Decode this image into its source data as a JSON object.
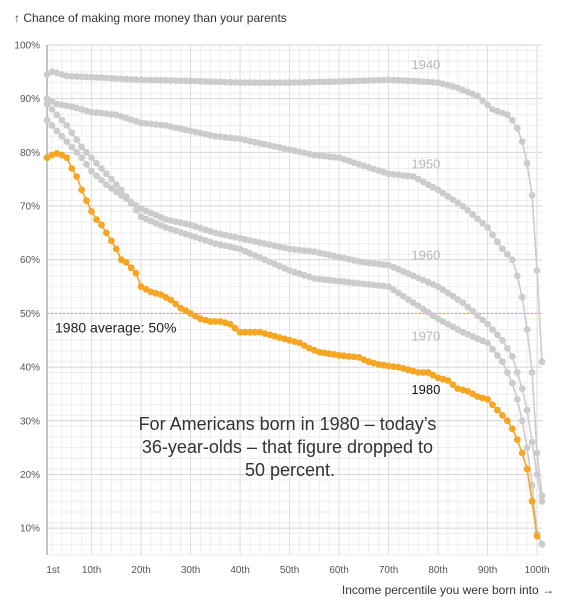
{
  "chart_data": {
    "type": "line",
    "ylabel": "↑ Chance of making more money than your parents",
    "xlabel": "Income percentile you were born into →",
    "x_range": [
      1,
      100
    ],
    "ylim": [
      5,
      100
    ],
    "y_ticks": [
      10,
      20,
      30,
      40,
      50,
      60,
      70,
      80,
      90,
      100
    ],
    "y_tick_labels": [
      "10%",
      "20%",
      "30%",
      "40%",
      "50%",
      "60%",
      "70%",
      "80%",
      "90%",
      "100%"
    ],
    "x_ticks": [
      1,
      10,
      20,
      30,
      40,
      50,
      60,
      70,
      80,
      90,
      100
    ],
    "x_tick_labels": [
      "1st",
      "10th",
      "20th",
      "30th",
      "40th",
      "50th",
      "60th",
      "70th",
      "80th",
      "90th",
      "100th"
    ],
    "grid": true,
    "reference_line": {
      "y": 50,
      "label": "1980 average: 50%"
    },
    "annotation": [
      "For Americans born in 1980 – today’s",
      "36-year-olds – that figure dropped to",
      "50 percent."
    ],
    "series": [
      {
        "name": "1940",
        "color": "#cccccc",
        "points": [
          [
            1,
            94.5
          ],
          [
            2,
            95
          ],
          [
            3,
            94.8
          ],
          [
            5,
            94.2
          ],
          [
            10,
            94
          ],
          [
            20,
            93.5
          ],
          [
            30,
            93.3
          ],
          [
            40,
            93
          ],
          [
            50,
            93
          ],
          [
            60,
            93.2
          ],
          [
            70,
            93.5
          ],
          [
            75,
            93.3
          ],
          [
            80,
            93
          ],
          [
            84,
            92
          ],
          [
            88,
            90.5
          ],
          [
            91,
            88
          ],
          [
            94,
            87
          ],
          [
            95,
            86
          ],
          [
            96,
            84.5
          ],
          [
            97,
            82
          ],
          [
            98,
            78
          ],
          [
            99,
            72
          ],
          [
            100,
            58
          ],
          [
            101,
            41
          ]
        ]
      },
      {
        "name": "1950",
        "color": "#cccccc",
        "points": [
          [
            1,
            90
          ],
          [
            3,
            89
          ],
          [
            6,
            88.5
          ],
          [
            10,
            87.5
          ],
          [
            15,
            87
          ],
          [
            20,
            85.5
          ],
          [
            25,
            85
          ],
          [
            30,
            84
          ],
          [
            35,
            83
          ],
          [
            40,
            82.5
          ],
          [
            45,
            81.5
          ],
          [
            50,
            80.5
          ],
          [
            55,
            79.5
          ],
          [
            60,
            79
          ],
          [
            65,
            77.5
          ],
          [
            70,
            76
          ],
          [
            75,
            75.5
          ],
          [
            80,
            73
          ],
          [
            85,
            70
          ],
          [
            90,
            66
          ],
          [
            93,
            62
          ],
          [
            95,
            60
          ],
          [
            96,
            57
          ],
          [
            97,
            53
          ],
          [
            98,
            47
          ],
          [
            99,
            39
          ],
          [
            100,
            24
          ],
          [
            101,
            16
          ]
        ]
      },
      {
        "name": "1960",
        "color": "#cccccc",
        "points": [
          [
            1,
            86
          ],
          [
            3,
            84
          ],
          [
            5,
            82
          ],
          [
            8,
            79
          ],
          [
            10,
            76.5
          ],
          [
            13,
            74
          ],
          [
            16,
            72
          ],
          [
            20,
            69.5
          ],
          [
            25,
            67.5
          ],
          [
            30,
            66.5
          ],
          [
            35,
            65
          ],
          [
            40,
            64
          ],
          [
            45,
            63
          ],
          [
            50,
            62
          ],
          [
            55,
            61.5
          ],
          [
            60,
            60.5
          ],
          [
            65,
            59.5
          ],
          [
            70,
            59
          ],
          [
            75,
            57
          ],
          [
            80,
            55
          ],
          [
            85,
            52
          ],
          [
            90,
            48
          ],
          [
            93,
            45
          ],
          [
            95,
            42
          ],
          [
            96,
            39
          ],
          [
            97,
            36
          ],
          [
            98,
            32
          ],
          [
            99,
            26
          ],
          [
            100,
            20
          ],
          [
            101,
            15
          ]
        ]
      },
      {
        "name": "1970",
        "color": "#cccccc",
        "points": [
          [
            1,
            89
          ],
          [
            3,
            87
          ],
          [
            5,
            85
          ],
          [
            8,
            81
          ],
          [
            10,
            79
          ],
          [
            13,
            76
          ],
          [
            16,
            73
          ],
          [
            20,
            68
          ],
          [
            25,
            66
          ],
          [
            30,
            64.5
          ],
          [
            35,
            63
          ],
          [
            40,
            62
          ],
          [
            45,
            60
          ],
          [
            50,
            58
          ],
          [
            55,
            56.5
          ],
          [
            60,
            56
          ],
          [
            65,
            55.5
          ],
          [
            70,
            55
          ],
          [
            75,
            52
          ],
          [
            80,
            49
          ],
          [
            85,
            46.5
          ],
          [
            90,
            44.5
          ],
          [
            93,
            41
          ],
          [
            95,
            37
          ],
          [
            96,
            34
          ],
          [
            97,
            30
          ],
          [
            98,
            25
          ],
          [
            99,
            18
          ],
          [
            100,
            9
          ],
          [
            101,
            7
          ]
        ]
      },
      {
        "name": "1980",
        "color": "#f5a623",
        "points": [
          [
            1,
            79
          ],
          [
            2,
            79.5
          ],
          [
            3,
            79.8
          ],
          [
            4,
            79.5
          ],
          [
            5,
            79
          ],
          [
            6,
            77
          ],
          [
            7,
            75.5
          ],
          [
            8,
            73
          ],
          [
            9,
            71
          ],
          [
            10,
            69
          ],
          [
            11,
            67.5
          ],
          [
            12,
            66.5
          ],
          [
            13,
            65
          ],
          [
            14,
            63.5
          ],
          [
            15,
            62
          ],
          [
            16,
            60
          ],
          [
            17,
            59.5
          ],
          [
            18,
            58.5
          ],
          [
            19,
            57.5
          ],
          [
            20,
            55
          ],
          [
            22,
            54
          ],
          [
            24,
            53.5
          ],
          [
            26,
            52.5
          ],
          [
            28,
            51
          ],
          [
            30,
            50
          ],
          [
            32,
            49
          ],
          [
            34,
            48.5
          ],
          [
            36,
            48.5
          ],
          [
            38,
            48
          ],
          [
            40,
            46.5
          ],
          [
            42,
            46.5
          ],
          [
            44,
            46.5
          ],
          [
            46,
            46
          ],
          [
            48,
            45.5
          ],
          [
            50,
            45
          ],
          [
            52,
            44.5
          ],
          [
            54,
            43.5
          ],
          [
            56,
            42.8
          ],
          [
            58,
            42.5
          ],
          [
            60,
            42.2
          ],
          [
            62,
            42
          ],
          [
            64,
            41.8
          ],
          [
            66,
            41
          ],
          [
            68,
            40.5
          ],
          [
            70,
            40.2
          ],
          [
            72,
            40
          ],
          [
            74,
            39.5
          ],
          [
            76,
            39
          ],
          [
            78,
            39
          ],
          [
            80,
            38
          ],
          [
            82,
            37.5
          ],
          [
            84,
            36
          ],
          [
            86,
            35.5
          ],
          [
            88,
            34.5
          ],
          [
            90,
            34
          ],
          [
            91,
            33
          ],
          [
            92,
            32
          ],
          [
            93,
            31
          ],
          [
            94,
            30
          ],
          [
            95,
            28.5
          ],
          [
            96,
            26.5
          ],
          [
            97,
            24
          ],
          [
            98,
            21
          ],
          [
            99,
            15
          ],
          [
            100,
            8.5
          ]
        ]
      }
    ],
    "series_labels": [
      {
        "text": "1940",
        "x": 73,
        "y": 95.5,
        "color": "#b8b8b8"
      },
      {
        "text": "1950",
        "x": 73,
        "y": 77,
        "color": "#b8b8b8"
      },
      {
        "text": "1960",
        "x": 73,
        "y": 60,
        "color": "#b8b8b8"
      },
      {
        "text": "1970",
        "x": 73,
        "y": 45,
        "color": "#b8b8b8"
      },
      {
        "text": "1980",
        "x": 73,
        "y": 35,
        "color": "#111111"
      }
    ]
  }
}
